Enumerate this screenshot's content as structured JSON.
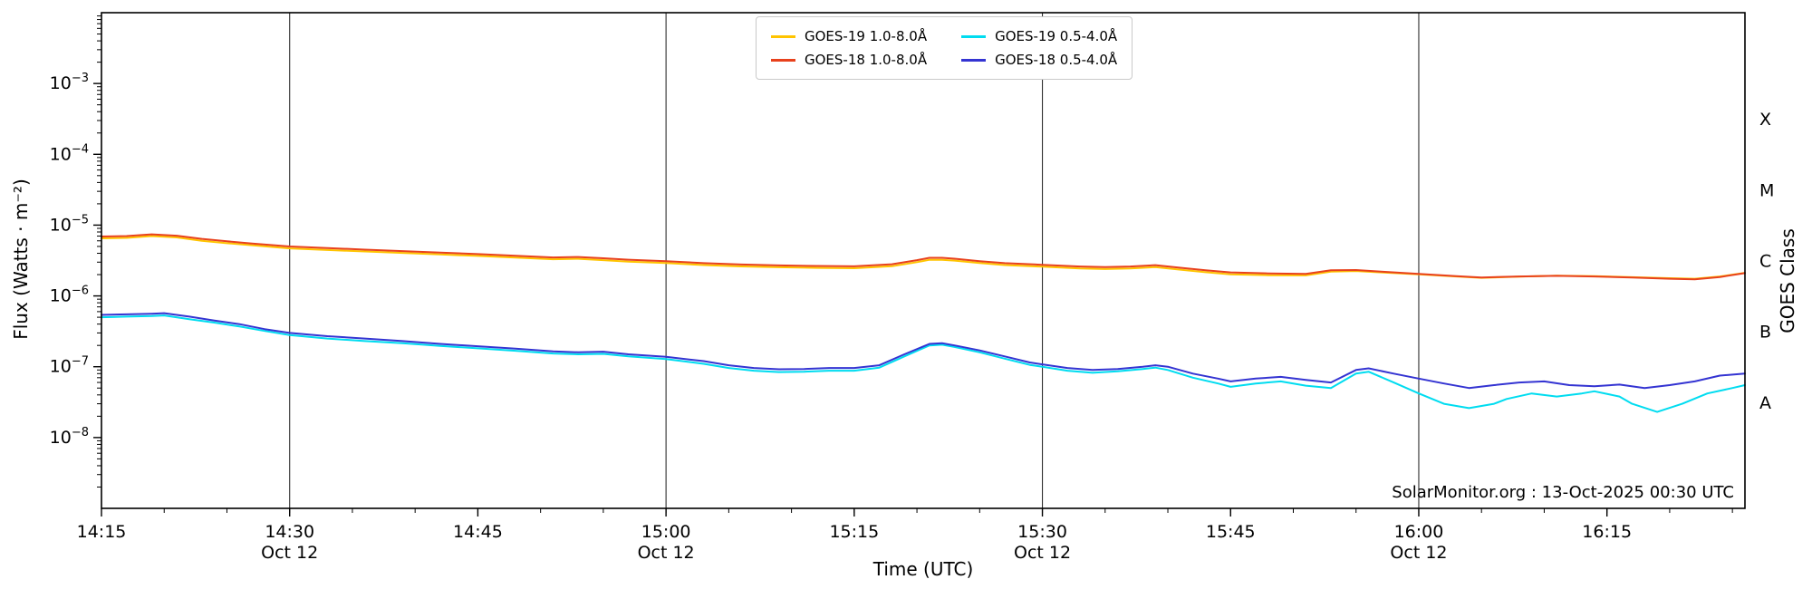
{
  "chart_data": {
    "type": "line",
    "title": "",
    "xlabel": "Time (UTC)",
    "ylabel": "Flux (Watts · m⁻²)",
    "ylabel_right": "GOES Class",
    "annotation": "SolarMonitor.org : 13-Oct-2025 00:30 UTC",
    "legend_position": "top-center",
    "x_axis": {
      "unit": "minutes after 14:15 UTC, 12 Oct 2025",
      "range_minutes_from_start": [
        0,
        131
      ],
      "minor_tick_step_minutes": 5,
      "day_gridline_minutes": [
        15,
        45,
        75,
        105
      ],
      "major_ticks": [
        {
          "minute": 0,
          "label": "14:15",
          "sublabel": ""
        },
        {
          "minute": 15,
          "label": "14:30",
          "sublabel": "Oct 12"
        },
        {
          "minute": 30,
          "label": "14:45",
          "sublabel": ""
        },
        {
          "minute": 45,
          "label": "15:00",
          "sublabel": "Oct 12"
        },
        {
          "minute": 60,
          "label": "15:15",
          "sublabel": ""
        },
        {
          "minute": 75,
          "label": "15:30",
          "sublabel": "Oct 12"
        },
        {
          "minute": 90,
          "label": "15:45",
          "sublabel": ""
        },
        {
          "minute": 105,
          "label": "16:00",
          "sublabel": "Oct 12"
        },
        {
          "minute": 120,
          "label": "16:15",
          "sublabel": ""
        }
      ]
    },
    "y_axis": {
      "scale": "log",
      "ylim": [
        1e-09,
        0.01
      ],
      "major_ticks": [
        {
          "value": 0.001,
          "label": "10⁻³",
          "exp": "−3"
        },
        {
          "value": 0.0001,
          "label": "10⁻⁴",
          "exp": "−4"
        },
        {
          "value": 1e-05,
          "label": "10⁻⁵",
          "exp": "−5"
        },
        {
          "value": 1e-06,
          "label": "10⁻⁶",
          "exp": "−6"
        },
        {
          "value": 1e-07,
          "label": "10⁻⁷",
          "exp": "−7"
        },
        {
          "value": 1e-08,
          "label": "10⁻⁸",
          "exp": "−8"
        }
      ]
    },
    "goes_class_labels": [
      {
        "label": "X",
        "value": 0.000316
      },
      {
        "label": "M",
        "value": 3.16e-05
      },
      {
        "label": "C",
        "value": 3.16e-06
      },
      {
        "label": "B",
        "value": 3.16e-07
      },
      {
        "label": "A",
        "value": 3.16e-08
      }
    ],
    "series": [
      {
        "id": "goes19-long",
        "name": "GOES-19 1.0-8.0Å",
        "color": "#ffc400",
        "points": [
          [
            0,
            6.5e-06
          ],
          [
            2,
            6.6e-06
          ],
          [
            4,
            7e-06
          ],
          [
            6,
            6.7e-06
          ],
          [
            8,
            6e-06
          ],
          [
            10,
            5.55e-06
          ],
          [
            12,
            5.2e-06
          ],
          [
            15,
            4.7e-06
          ],
          [
            18,
            4.45e-06
          ],
          [
            21,
            4.25e-06
          ],
          [
            24,
            4.05e-06
          ],
          [
            27,
            3.85e-06
          ],
          [
            30,
            3.67e-06
          ],
          [
            33,
            3.48e-06
          ],
          [
            36,
            3.3e-06
          ],
          [
            38,
            3.34e-06
          ],
          [
            40,
            3.2e-06
          ],
          [
            42,
            3.05e-06
          ],
          [
            45,
            2.92e-06
          ],
          [
            48,
            2.73e-06
          ],
          [
            51,
            2.61e-06
          ],
          [
            54,
            2.54e-06
          ],
          [
            57,
            2.49e-06
          ],
          [
            60,
            2.46e-06
          ],
          [
            63,
            2.63e-06
          ],
          [
            65,
            3e-06
          ],
          [
            66,
            3.24e-06
          ],
          [
            67,
            3.24e-06
          ],
          [
            68,
            3.15e-06
          ],
          [
            70,
            2.91e-06
          ],
          [
            72,
            2.73e-06
          ],
          [
            75,
            2.59e-06
          ],
          [
            78,
            2.44e-06
          ],
          [
            80,
            2.4e-06
          ],
          [
            82,
            2.44e-06
          ],
          [
            84,
            2.56e-06
          ],
          [
            86,
            2.35e-06
          ],
          [
            88,
            2.16e-06
          ],
          [
            90,
            2.02e-06
          ],
          [
            93,
            1.96e-06
          ],
          [
            96,
            1.95e-06
          ],
          [
            98,
            2.2e-06
          ],
          [
            100,
            2.25e-06
          ],
          [
            102,
            2.15e-06
          ],
          [
            105,
            2.02e-06
          ],
          [
            108,
            1.88e-06
          ],
          [
            110,
            1.8e-06
          ],
          [
            113,
            1.87e-06
          ],
          [
            116,
            1.93e-06
          ],
          [
            119,
            1.9e-06
          ],
          [
            122,
            1.84e-06
          ],
          [
            125,
            1.78e-06
          ],
          [
            127,
            1.75e-06
          ],
          [
            129,
            1.88e-06
          ],
          [
            131,
            2.12e-06
          ]
        ]
      },
      {
        "id": "goes18-long",
        "name": "GOES-18 1.0-8.0Å",
        "color": "#e8411c",
        "points": [
          [
            0,
            6.9e-06
          ],
          [
            2,
            7e-06
          ],
          [
            4,
            7.4e-06
          ],
          [
            6,
            7.1e-06
          ],
          [
            8,
            6.4e-06
          ],
          [
            10,
            5.9e-06
          ],
          [
            12,
            5.5e-06
          ],
          [
            15,
            5e-06
          ],
          [
            18,
            4.75e-06
          ],
          [
            21,
            4.5e-06
          ],
          [
            24,
            4.3e-06
          ],
          [
            27,
            4.1e-06
          ],
          [
            30,
            3.9e-06
          ],
          [
            33,
            3.7e-06
          ],
          [
            36,
            3.5e-06
          ],
          [
            38,
            3.55e-06
          ],
          [
            40,
            3.4e-06
          ],
          [
            42,
            3.25e-06
          ],
          [
            45,
            3.1e-06
          ],
          [
            48,
            2.9e-06
          ],
          [
            51,
            2.78e-06
          ],
          [
            54,
            2.7e-06
          ],
          [
            57,
            2.65e-06
          ],
          [
            60,
            2.62e-06
          ],
          [
            63,
            2.8e-06
          ],
          [
            65,
            3.2e-06
          ],
          [
            66,
            3.45e-06
          ],
          [
            67,
            3.45e-06
          ],
          [
            68,
            3.35e-06
          ],
          [
            70,
            3.1e-06
          ],
          [
            72,
            2.9e-06
          ],
          [
            75,
            2.75e-06
          ],
          [
            78,
            2.6e-06
          ],
          [
            80,
            2.55e-06
          ],
          [
            82,
            2.6e-06
          ],
          [
            84,
            2.72e-06
          ],
          [
            86,
            2.5e-06
          ],
          [
            88,
            2.3e-06
          ],
          [
            90,
            2.15e-06
          ],
          [
            93,
            2.08e-06
          ],
          [
            96,
            2.05e-06
          ],
          [
            98,
            2.3e-06
          ],
          [
            100,
            2.32e-06
          ],
          [
            102,
            2.2e-06
          ],
          [
            105,
            2.05e-06
          ],
          [
            108,
            1.9e-06
          ],
          [
            110,
            1.82e-06
          ],
          [
            113,
            1.88e-06
          ],
          [
            116,
            1.92e-06
          ],
          [
            119,
            1.88e-06
          ],
          [
            122,
            1.82e-06
          ],
          [
            125,
            1.75e-06
          ],
          [
            127,
            1.72e-06
          ],
          [
            129,
            1.85e-06
          ],
          [
            131,
            2.1e-06
          ]
        ]
      },
      {
        "id": "goes19-short",
        "name": "GOES-19 0.5-4.0Å",
        "color": "#00dcf0",
        "points": [
          [
            0,
            5e-07
          ],
          [
            2,
            5.1e-07
          ],
          [
            4,
            5.2e-07
          ],
          [
            5,
            5.3e-07
          ],
          [
            7,
            4.7e-07
          ],
          [
            9,
            4.2e-07
          ],
          [
            11,
            3.7e-07
          ],
          [
            13,
            3.2e-07
          ],
          [
            15,
            2.8e-07
          ],
          [
            18,
            2.5e-07
          ],
          [
            21,
            2.3e-07
          ],
          [
            24,
            2.15e-07
          ],
          [
            27,
            1.97e-07
          ],
          [
            30,
            1.82e-07
          ],
          [
            33,
            1.68e-07
          ],
          [
            36,
            1.54e-07
          ],
          [
            38,
            1.5e-07
          ],
          [
            40,
            1.52e-07
          ],
          [
            42,
            1.4e-07
          ],
          [
            45,
            1.28e-07
          ],
          [
            48,
            1.1e-07
          ],
          [
            50,
            9.6e-08
          ],
          [
            52,
            8.8e-08
          ],
          [
            54,
            8.4e-08
          ],
          [
            56,
            8.5e-08
          ],
          [
            58,
            8.8e-08
          ],
          [
            60,
            8.8e-08
          ],
          [
            62,
            9.7e-08
          ],
          [
            64,
            1.4e-07
          ],
          [
            66,
            2e-07
          ],
          [
            67,
            2.05e-07
          ],
          [
            68,
            1.9e-07
          ],
          [
            70,
            1.6e-07
          ],
          [
            72,
            1.3e-07
          ],
          [
            74,
            1.06e-07
          ],
          [
            75,
            1e-07
          ],
          [
            77,
            8.8e-08
          ],
          [
            79,
            8.2e-08
          ],
          [
            81,
            8.6e-08
          ],
          [
            83,
            9.3e-08
          ],
          [
            84,
            9.7e-08
          ],
          [
            85,
            9e-08
          ],
          [
            87,
            7e-08
          ],
          [
            89,
            5.8e-08
          ],
          [
            90,
            5.2e-08
          ],
          [
            92,
            5.8e-08
          ],
          [
            94,
            6.2e-08
          ],
          [
            96,
            5.4e-08
          ],
          [
            98,
            5e-08
          ],
          [
            100,
            8e-08
          ],
          [
            101,
            8.5e-08
          ],
          [
            103,
            6e-08
          ],
          [
            105,
            4.2e-08
          ],
          [
            107,
            3e-08
          ],
          [
            109,
            2.6e-08
          ],
          [
            111,
            3e-08
          ],
          [
            112,
            3.5e-08
          ],
          [
            114,
            4.2e-08
          ],
          [
            116,
            3.8e-08
          ],
          [
            118,
            4.2e-08
          ],
          [
            119,
            4.5e-08
          ],
          [
            121,
            3.8e-08
          ],
          [
            122,
            3e-08
          ],
          [
            124,
            2.3e-08
          ],
          [
            126,
            3e-08
          ],
          [
            128,
            4.2e-08
          ],
          [
            130,
            5e-08
          ],
          [
            131,
            5.5e-08
          ]
        ]
      },
      {
        "id": "goes18-short",
        "name": "GOES-18 0.5-4.0Å",
        "color": "#3434d2",
        "points": [
          [
            0,
            5.4e-07
          ],
          [
            2,
            5.5e-07
          ],
          [
            4,
            5.6e-07
          ],
          [
            5,
            5.7e-07
          ],
          [
            7,
            5.1e-07
          ],
          [
            9,
            4.5e-07
          ],
          [
            11,
            4e-07
          ],
          [
            13,
            3.4e-07
          ],
          [
            15,
            3e-07
          ],
          [
            18,
            2.7e-07
          ],
          [
            21,
            2.5e-07
          ],
          [
            24,
            2.3e-07
          ],
          [
            27,
            2.1e-07
          ],
          [
            30,
            1.95e-07
          ],
          [
            33,
            1.8e-07
          ],
          [
            36,
            1.65e-07
          ],
          [
            38,
            1.6e-07
          ],
          [
            40,
            1.63e-07
          ],
          [
            42,
            1.5e-07
          ],
          [
            45,
            1.38e-07
          ],
          [
            48,
            1.2e-07
          ],
          [
            50,
            1.05e-07
          ],
          [
            52,
            9.6e-08
          ],
          [
            54,
            9.2e-08
          ],
          [
            56,
            9.3e-08
          ],
          [
            58,
            9.6e-08
          ],
          [
            60,
            9.6e-08
          ],
          [
            62,
            1.05e-07
          ],
          [
            64,
            1.5e-07
          ],
          [
            66,
            2.1e-07
          ],
          [
            67,
            2.15e-07
          ],
          [
            68,
            2e-07
          ],
          [
            70,
            1.7e-07
          ],
          [
            72,
            1.4e-07
          ],
          [
            74,
            1.15e-07
          ],
          [
            75,
            1.08e-07
          ],
          [
            77,
            9.6e-08
          ],
          [
            79,
            9e-08
          ],
          [
            81,
            9.3e-08
          ],
          [
            83,
            1e-07
          ],
          [
            84,
            1.05e-07
          ],
          [
            85,
            1e-07
          ],
          [
            87,
            8e-08
          ],
          [
            89,
            6.8e-08
          ],
          [
            90,
            6.2e-08
          ],
          [
            92,
            6.8e-08
          ],
          [
            94,
            7.2e-08
          ],
          [
            96,
            6.5e-08
          ],
          [
            98,
            6e-08
          ],
          [
            100,
            9e-08
          ],
          [
            101,
            9.5e-08
          ],
          [
            103,
            8e-08
          ],
          [
            105,
            6.8e-08
          ],
          [
            107,
            5.8e-08
          ],
          [
            109,
            5e-08
          ],
          [
            111,
            5.5e-08
          ],
          [
            113,
            6e-08
          ],
          [
            115,
            6.2e-08
          ],
          [
            117,
            5.5e-08
          ],
          [
            119,
            5.3e-08
          ],
          [
            121,
            5.6e-08
          ],
          [
            123,
            5e-08
          ],
          [
            125,
            5.5e-08
          ],
          [
            127,
            6.2e-08
          ],
          [
            129,
            7.5e-08
          ],
          [
            131,
            8e-08
          ]
        ]
      }
    ]
  }
}
